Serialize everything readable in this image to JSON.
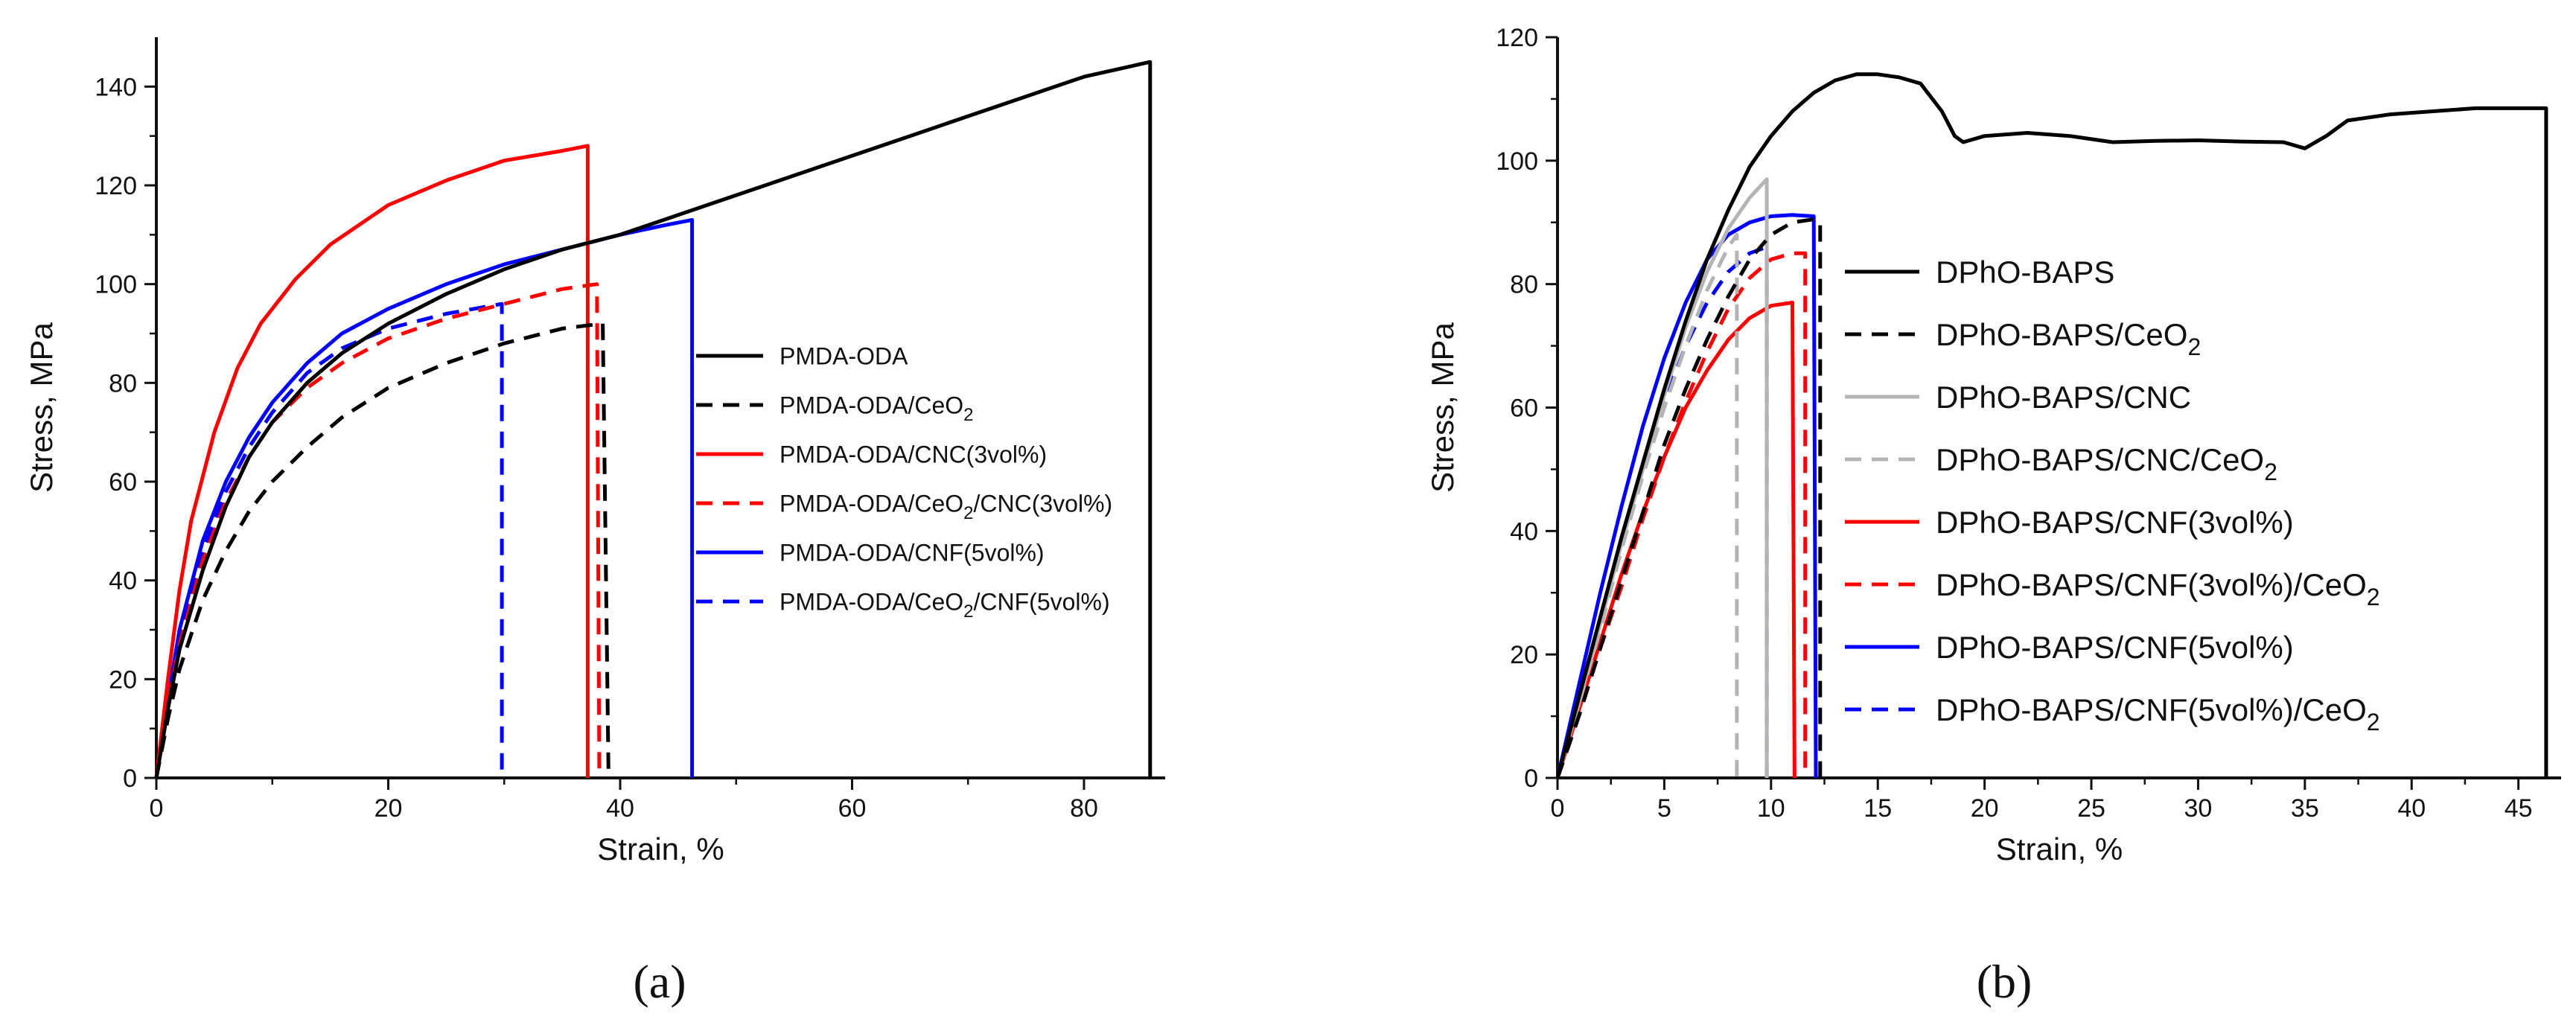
{
  "figure": {
    "panel_labels": [
      "(a)",
      "(b)"
    ]
  },
  "chart_data": [
    {
      "type": "line",
      "panel": "a",
      "title": "",
      "xlabel": "Strain, %",
      "ylabel": "Stress, MPa",
      "xlim": [
        0,
        87
      ],
      "ylim": [
        0,
        150
      ],
      "xticks": [
        0,
        20,
        40,
        60,
        80
      ],
      "yticks": [
        0,
        20,
        40,
        60,
        80,
        100,
        120,
        140
      ],
      "legend_position": "center-right",
      "series": [
        {
          "name": "PMDA-ODA",
          "color": "#000000",
          "dash": "solid",
          "legend": [
            "PMDA-ODA"
          ],
          "points": [
            [
              0,
              0
            ],
            [
              1,
              14
            ],
            [
              2,
              26
            ],
            [
              4,
              42
            ],
            [
              6,
              55
            ],
            [
              8,
              65
            ],
            [
              10,
              72
            ],
            [
              13,
              80
            ],
            [
              16,
              86
            ],
            [
              20,
              92
            ],
            [
              25,
              98
            ],
            [
              30,
              103
            ],
            [
              35,
              107
            ],
            [
              40,
              110
            ],
            [
              45,
              114
            ],
            [
              50,
              118
            ],
            [
              55,
              122
            ],
            [
              60,
              126
            ],
            [
              65,
              130
            ],
            [
              70,
              134
            ],
            [
              75,
              138
            ],
            [
              80,
              142
            ],
            [
              85.7,
              145
            ],
            [
              85.7,
              0
            ]
          ]
        },
        {
          "name": "PMDA-ODA/CeO2",
          "color": "#000000",
          "dash": "dashed",
          "legend": [
            "PMDA-ODA/CeO",
            "2",
            ""
          ],
          "points": [
            [
              0,
              0
            ],
            [
              1,
              12
            ],
            [
              2,
              22
            ],
            [
              4,
              36
            ],
            [
              6,
              46
            ],
            [
              8,
              54
            ],
            [
              10,
              60
            ],
            [
              13,
              67
            ],
            [
              16,
              73
            ],
            [
              20,
              79
            ],
            [
              25,
              84
            ],
            [
              30,
              88
            ],
            [
              35,
              91
            ],
            [
              38.5,
              92
            ],
            [
              39,
              0
            ]
          ]
        },
        {
          "name": "PMDA-ODA/CNC(3vol%)",
          "color": "#ff0000",
          "dash": "solid",
          "legend": [
            "PMDA-ODA/CNC(3vol%)"
          ],
          "points": [
            [
              0,
              0
            ],
            [
              1,
              20
            ],
            [
              2,
              38
            ],
            [
              3,
              52
            ],
            [
              5,
              70
            ],
            [
              7,
              83
            ],
            [
              9,
              92
            ],
            [
              12,
              101
            ],
            [
              15,
              108
            ],
            [
              20,
              116
            ],
            [
              25,
              121
            ],
            [
              30,
              125
            ],
            [
              35,
              127
            ],
            [
              37.2,
              128
            ],
            [
              37.2,
              0
            ]
          ]
        },
        {
          "name": "PMDA-ODA/CeO2/CNC(3vol%)",
          "color": "#ff0000",
          "dash": "dashed",
          "legend": [
            "PMDA-ODA/CeO",
            "2",
            "/CNC(3vol%)"
          ],
          "points": [
            [
              0,
              0
            ],
            [
              1,
              15
            ],
            [
              2,
              27
            ],
            [
              4,
              44
            ],
            [
              6,
              56
            ],
            [
              8,
              65
            ],
            [
              10,
              72
            ],
            [
              13,
              79
            ],
            [
              16,
              84
            ],
            [
              20,
              89
            ],
            [
              25,
              93
            ],
            [
              30,
              96
            ],
            [
              35,
              99
            ],
            [
              38,
              100
            ],
            [
              38.2,
              0
            ]
          ]
        },
        {
          "name": "PMDA-ODA/CNF(5vol%)",
          "color": "#0000ff",
          "dash": "solid",
          "legend": [
            "PMDA-ODA/CNF(5vol%)"
          ],
          "points": [
            [
              0,
              0
            ],
            [
              1,
              16
            ],
            [
              2,
              30
            ],
            [
              4,
              48
            ],
            [
              6,
              60
            ],
            [
              8,
              69
            ],
            [
              10,
              76
            ],
            [
              13,
              84
            ],
            [
              16,
              90
            ],
            [
              20,
              95
            ],
            [
              25,
              100
            ],
            [
              30,
              104
            ],
            [
              35,
              107
            ],
            [
              40,
              110
            ],
            [
              44,
              112
            ],
            [
              46.2,
              113
            ],
            [
              46.2,
              0
            ]
          ]
        },
        {
          "name": "PMDA-ODA/CeO2/CNF(5vol%)",
          "color": "#0000ff",
          "dash": "dashed",
          "legend": [
            "PMDA-ODA/CeO",
            "2",
            "/CNF(5vol%)"
          ],
          "points": [
            [
              0,
              0
            ],
            [
              1,
              15
            ],
            [
              2,
              28
            ],
            [
              4,
              46
            ],
            [
              6,
              58
            ],
            [
              8,
              67
            ],
            [
              10,
              74
            ],
            [
              13,
              82
            ],
            [
              16,
              87
            ],
            [
              20,
              91
            ],
            [
              25,
              94
            ],
            [
              29.8,
              96
            ],
            [
              29.8,
              0
            ]
          ]
        }
      ]
    },
    {
      "type": "line",
      "panel": "b",
      "title": "",
      "xlabel": "Strain, %",
      "ylabel": "Stress, MPa",
      "xlim": [
        0,
        47
      ],
      "ylim": [
        0,
        120
      ],
      "xticks": [
        0,
        5,
        10,
        15,
        20,
        25,
        30,
        35,
        40,
        45
      ],
      "yticks": [
        0,
        20,
        40,
        60,
        80,
        100,
        120
      ],
      "legend_position": "center-right",
      "series": [
        {
          "name": "DPhO-BAPS",
          "color": "#000000",
          "dash": "solid",
          "legend": [
            "DPhO-BAPS"
          ],
          "points": [
            [
              0,
              0
            ],
            [
              1,
              13
            ],
            [
              2,
              26
            ],
            [
              3,
              39
            ],
            [
              4,
              51
            ],
            [
              5,
              63
            ],
            [
              6,
              74
            ],
            [
              7,
              84
            ],
            [
              8,
              92
            ],
            [
              9,
              99
            ],
            [
              10,
              104
            ],
            [
              11,
              108
            ],
            [
              12,
              111
            ],
            [
              13,
              113
            ],
            [
              14,
              114
            ],
            [
              15,
              114
            ],
            [
              16,
              113.5
            ],
            [
              17,
              112.5
            ],
            [
              18,
              108
            ],
            [
              18.6,
              104
            ],
            [
              19,
              103
            ],
            [
              20,
              104
            ],
            [
              22,
              104.5
            ],
            [
              24,
              104
            ],
            [
              26,
              103
            ],
            [
              28,
              103.2
            ],
            [
              30,
              103.3
            ],
            [
              32,
              103.1
            ],
            [
              34,
              103
            ],
            [
              35,
              102
            ],
            [
              36,
              104
            ],
            [
              37,
              106.5
            ],
            [
              39,
              107.5
            ],
            [
              41,
              108
            ],
            [
              43,
              108.5
            ],
            [
              46.3,
              108.5
            ],
            [
              46.3,
              0
            ]
          ]
        },
        {
          "name": "DPhO-BAPS/CeO2",
          "color": "#000000",
          "dash": "dashed",
          "legend": [
            "DPhO-BAPS/CeO",
            "2",
            ""
          ],
          "points": [
            [
              0,
              0
            ],
            [
              1,
              10
            ],
            [
              2,
              21
            ],
            [
              3,
              32
            ],
            [
              4,
              43
            ],
            [
              5,
              54
            ],
            [
              6,
              63
            ],
            [
              7,
              71
            ],
            [
              8,
              78
            ],
            [
              9,
              84
            ],
            [
              10,
              88
            ],
            [
              11,
              90
            ],
            [
              12,
              90.5
            ],
            [
              12.3,
              90
            ],
            [
              12.3,
              0
            ]
          ]
        },
        {
          "name": "DPhO-BAPS/CNC",
          "color": "#b4b4b4",
          "dash": "solid",
          "legend": [
            "DPhO-BAPS/CNC"
          ],
          "points": [
            [
              0,
              0
            ],
            [
              1,
              12
            ],
            [
              2,
              25
            ],
            [
              3,
              38
            ],
            [
              4,
              50
            ],
            [
              5,
              62
            ],
            [
              6,
              73
            ],
            [
              7,
              82
            ],
            [
              8,
              89
            ],
            [
              9,
              94
            ],
            [
              9.8,
              97
            ],
            [
              9.8,
              0
            ]
          ]
        },
        {
          "name": "DPhO-BAPS/CNC/CeO2",
          "color": "#b4b4b4",
          "dash": "dashed",
          "legend": [
            "DPhO-BAPS/CNC/CeO",
            "2",
            ""
          ],
          "points": [
            [
              0,
              0
            ],
            [
              1,
              12
            ],
            [
              2,
              24
            ],
            [
              3,
              37
            ],
            [
              4,
              49
            ],
            [
              5,
              60
            ],
            [
              6,
              70
            ],
            [
              7,
              79
            ],
            [
              8,
              86
            ],
            [
              8.4,
              88
            ],
            [
              8.4,
              0
            ]
          ]
        },
        {
          "name": "DPhO-BAPS/CNF(3vol%)",
          "color": "#ff0000",
          "dash": "solid",
          "legend": [
            "DPhO-BAPS/CNF(3vol%)"
          ],
          "points": [
            [
              0,
              0
            ],
            [
              1,
              11
            ],
            [
              2,
              22
            ],
            [
              3,
              33
            ],
            [
              4,
              43
            ],
            [
              5,
              52
            ],
            [
              6,
              60
            ],
            [
              7,
              66
            ],
            [
              8,
              71
            ],
            [
              9,
              74.5
            ],
            [
              10,
              76.5
            ],
            [
              11,
              77
            ],
            [
              11.1,
              0
            ]
          ]
        },
        {
          "name": "DPhO-BAPS/CNF(3vol%)/CeO2",
          "color": "#ff0000",
          "dash": "dashed",
          "legend": [
            "DPhO-BAPS/CNF(3vol%)/CeO",
            "2",
            ""
          ],
          "points": [
            [
              0,
              0
            ],
            [
              1,
              10
            ],
            [
              2,
              21
            ],
            [
              3,
              31
            ],
            [
              4,
              42
            ],
            [
              5,
              52
            ],
            [
              6,
              61
            ],
            [
              7,
              69
            ],
            [
              8,
              76
            ],
            [
              9,
              81
            ],
            [
              10,
              84
            ],
            [
              11,
              85
            ],
            [
              11.6,
              85
            ],
            [
              11.6,
              0
            ]
          ]
        },
        {
          "name": "DPhO-BAPS/CNF(5vol%)",
          "color": "#0000ff",
          "dash": "solid",
          "legend": [
            "DPhO-BAPS/CNF(5vol%)"
          ],
          "points": [
            [
              0,
              0
            ],
            [
              1,
              15
            ],
            [
              2,
              30
            ],
            [
              3,
              44
            ],
            [
              4,
              57
            ],
            [
              5,
              68
            ],
            [
              6,
              77
            ],
            [
              7,
              84
            ],
            [
              8,
              88
            ],
            [
              9,
              90
            ],
            [
              10,
              91
            ],
            [
              11,
              91.2
            ],
            [
              12,
              91
            ],
            [
              12.1,
              0
            ]
          ]
        },
        {
          "name": "DPhO-BAPS/CNF(5vol%)/CeO2",
          "color": "#0000ff",
          "dash": "dashed",
          "legend": [
            "DPhO-BAPS/CNF(5vol%)/CeO",
            "2",
            ""
          ],
          "points": [
            [
              0,
              0
            ],
            [
              1,
              13
            ],
            [
              2,
              26
            ],
            [
              3,
              38
            ],
            [
              4,
              50
            ],
            [
              5,
              61
            ],
            [
              6,
              70
            ],
            [
              7,
              77
            ],
            [
              8,
              82
            ],
            [
              9,
              85
            ],
            [
              9.8,
              86
            ],
            [
              9.8,
              0
            ]
          ]
        }
      ]
    }
  ]
}
